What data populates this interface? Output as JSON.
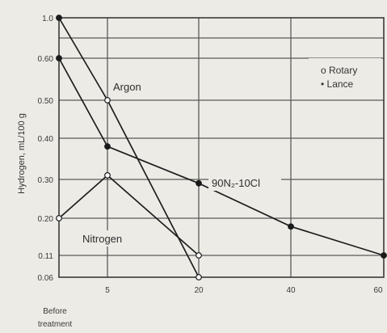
{
  "chart_data": {
    "type": "line",
    "ylabel": "Hydrogen, mL/100 g",
    "xlabel": "",
    "x_ticks": [
      "5",
      "20",
      "40",
      "60"
    ],
    "x_extra_label_lines": [
      "Before",
      "treatment"
    ],
    "y_ticks": [
      "1.0",
      "0.60",
      "0.50",
      "0.40",
      "0.30",
      "0.20",
      "0.11",
      "0.06"
    ],
    "xlim": [
      0,
      60
    ],
    "ylim": [
      0.06,
      1.0
    ],
    "grid": true,
    "legend_position": "top-right",
    "legend": [
      {
        "marker": "open",
        "label": "o Rotary"
      },
      {
        "marker": "filled",
        "label": "• Lance"
      }
    ],
    "series": [
      {
        "name": "Argon",
        "points": [
          [
            0,
            1.0,
            "filled"
          ],
          [
            5,
            0.5,
            "open"
          ],
          [
            20,
            0.06,
            "open"
          ]
        ]
      },
      {
        "name": "Nitrogen",
        "points": [
          [
            0,
            0.2,
            "open"
          ],
          [
            5,
            0.31,
            "open"
          ],
          [
            20,
            0.11,
            "open"
          ]
        ]
      },
      {
        "name": "90N2-10Cl",
        "points": [
          [
            0,
            0.6,
            "filled"
          ],
          [
            5,
            0.38,
            "filled"
          ],
          [
            20,
            0.29,
            "filled"
          ],
          [
            40,
            0.18,
            "filled"
          ],
          [
            60,
            0.11,
            "filled"
          ]
        ]
      }
    ],
    "annotations": [
      "Argon",
      "Nitrogen",
      "90N₂-10Cl"
    ]
  }
}
